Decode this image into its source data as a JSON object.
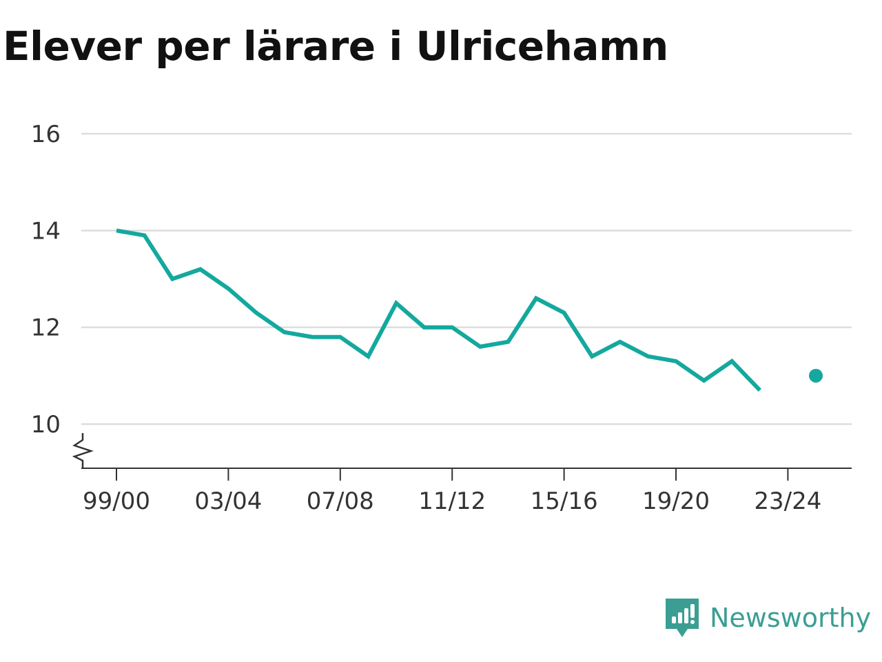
{
  "chart_data": {
    "type": "line",
    "title": "Elever per lärare i Ulricehamn",
    "xlabel": "",
    "ylabel": "",
    "categories": [
      "99/00",
      "00/01",
      "01/02",
      "02/03",
      "03/04",
      "04/05",
      "05/06",
      "06/07",
      "07/08",
      "08/09",
      "09/10",
      "10/11",
      "11/12",
      "12/13",
      "13/14",
      "14/15",
      "15/16",
      "16/17",
      "17/18",
      "18/19",
      "19/20",
      "20/21",
      "21/22",
      "22/23",
      "23/24",
      "24/25"
    ],
    "x_tick_labels": [
      "99/00",
      "03/04",
      "07/08",
      "11/12",
      "15/16",
      "19/20",
      "23/24"
    ],
    "y_ticks": [
      10,
      12,
      14,
      16
    ],
    "ylim": [
      9.1,
      16
    ],
    "y_axis_break": true,
    "grid": true,
    "series": [
      {
        "values": [
          14.0,
          13.9,
          13.0,
          13.2,
          12.8,
          12.3,
          11.9,
          11.8,
          11.8,
          11.4,
          12.5,
          12.0,
          12.0,
          11.6,
          11.7,
          12.6,
          12.3,
          11.4,
          11.7,
          11.4,
          11.3,
          10.9,
          11.3,
          10.7,
          null,
          11.0
        ],
        "color": "#14a89e"
      }
    ]
  },
  "brand": {
    "name": "Newsworthy",
    "icon": "newsworthy-logo-icon",
    "color": "#3a9e93"
  }
}
